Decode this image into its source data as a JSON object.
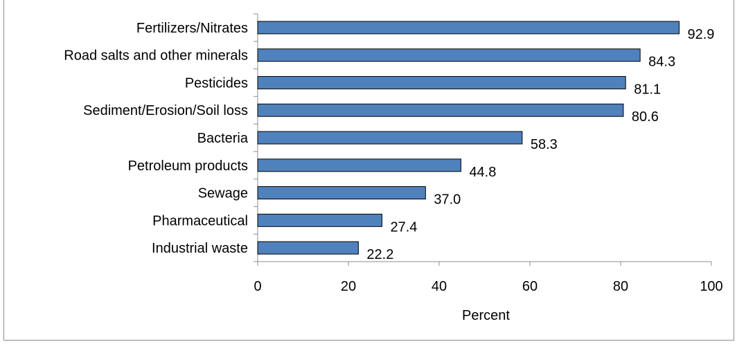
{
  "colors": {
    "bar_fill": "#4f81bd",
    "bar_stroke": "#000000",
    "axis": "#8c8c8c"
  },
  "chart_data": {
    "type": "bar",
    "orientation": "horizontal",
    "categories": [
      "Fertilizers/Nitrates",
      "Road salts and other minerals",
      "Pesticides",
      "Sediment/Erosion/Soil loss",
      "Bacteria",
      "Petroleum products",
      "Sewage",
      "Pharmaceutical",
      "Industrial waste"
    ],
    "values": [
      92.9,
      84.3,
      81.1,
      80.6,
      58.3,
      44.8,
      37.0,
      27.4,
      22.2
    ],
    "value_labels": [
      "92.9",
      "84.3",
      "81.1",
      "80.6",
      "58.3",
      "44.8",
      "37.0",
      "27.4",
      "22.2"
    ],
    "xlabel": "Percent",
    "ylabel": "",
    "xlim": [
      0,
      100
    ],
    "xticks": [
      0,
      20,
      40,
      60,
      80,
      100
    ],
    "grid": false,
    "legend": "none"
  }
}
